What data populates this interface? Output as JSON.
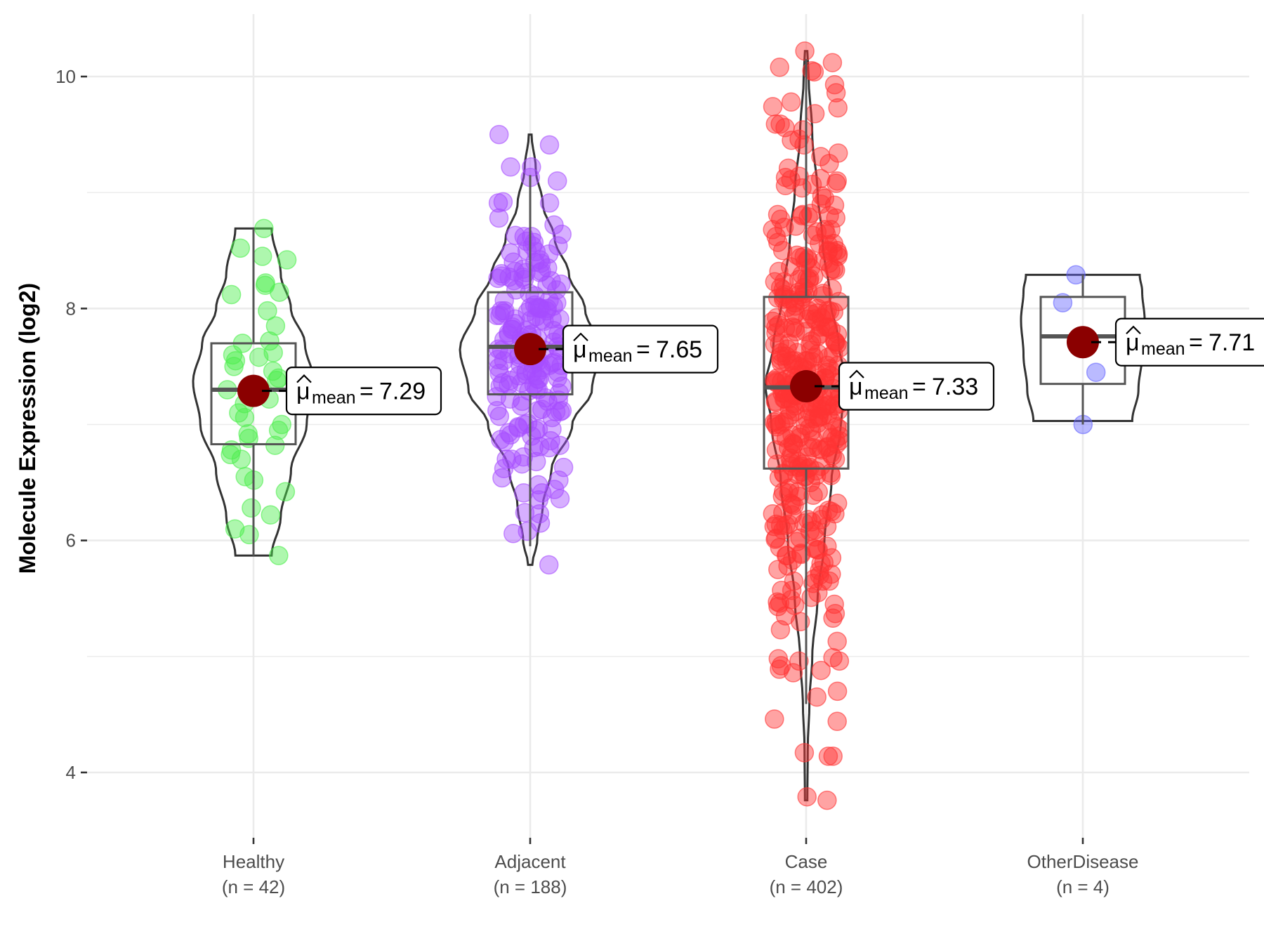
{
  "chart_data": {
    "type": "violin",
    "title": "",
    "xlabel": "",
    "ylabel": "Molecule Expression (log2)",
    "ylim": [
      3.5,
      10.5
    ],
    "y_ticks": [
      4,
      6,
      8,
      10
    ],
    "y_minor_ticks": [
      5,
      7,
      9
    ],
    "grid": true,
    "legend": "none",
    "mean_label_symbol": "μ",
    "mean_label_subscript": "mean",
    "groups": [
      {
        "name": "Healthy",
        "n_label": "(n = 42)",
        "n": 42,
        "color": "#4cee4c",
        "mean": 7.29,
        "mean_label": "7.29",
        "min": 5.87,
        "q1": 6.83,
        "median": 7.3,
        "q3": 7.7,
        "max": 8.69,
        "whisker_low": 5.87,
        "whisker_high": 8.69,
        "violin_profile": [
          [
            5.87,
            0.3
          ],
          [
            6.2,
            0.45
          ],
          [
            6.6,
            0.62
          ],
          [
            7.0,
            0.88
          ],
          [
            7.37,
            1.0
          ],
          [
            7.7,
            0.85
          ],
          [
            8.0,
            0.62
          ],
          [
            8.3,
            0.45
          ],
          [
            8.69,
            0.3
          ]
        ],
        "points": [
          8.69,
          8.52,
          8.45,
          8.42,
          8.22,
          8.2,
          8.12,
          8.14,
          7.98,
          7.85,
          7.72,
          7.7,
          7.62,
          7.6,
          7.58,
          7.55,
          7.5,
          7.46,
          7.4,
          7.38,
          7.3,
          7.28,
          7.22,
          7.18,
          7.1,
          7.06,
          7.0,
          6.95,
          6.92,
          6.88,
          6.82,
          6.78,
          6.74,
          6.7,
          6.55,
          6.52,
          6.42,
          6.28,
          6.22,
          6.1,
          6.05,
          5.87
        ]
      },
      {
        "name": "Adjacent",
        "n_label": "(n = 188)",
        "n": 188,
        "color": "#a64dff",
        "mean": 7.65,
        "mean_label": "7.65",
        "min": 5.79,
        "q1": 7.26,
        "median": 7.67,
        "q3": 8.14,
        "max": 9.5,
        "whisker_low": 5.95,
        "whisker_high": 9.15,
        "violin_profile": [
          [
            5.79,
            0.03
          ],
          [
            6.0,
            0.1
          ],
          [
            6.3,
            0.18
          ],
          [
            6.6,
            0.3
          ],
          [
            7.0,
            0.6
          ],
          [
            7.3,
            0.88
          ],
          [
            7.65,
            1.0
          ],
          [
            8.0,
            0.78
          ],
          [
            8.3,
            0.55
          ],
          [
            8.6,
            0.35
          ],
          [
            8.9,
            0.18
          ],
          [
            9.2,
            0.08
          ],
          [
            9.5,
            0.02
          ]
        ],
        "points_summary": "188 jittered points concentrated 6.5–8.5"
      },
      {
        "name": "Case",
        "n_label": "(n = 402)",
        "n": 402,
        "color": "#ff3333",
        "mean": 7.33,
        "mean_label": "7.33",
        "min": 3.76,
        "q1": 6.62,
        "median": 7.32,
        "q3": 8.1,
        "max": 10.22,
        "whisker_low": 4.59,
        "whisker_high": 10.15,
        "violin_profile": [
          [
            3.76,
            0.03
          ],
          [
            4.2,
            0.04
          ],
          [
            4.6,
            0.08
          ],
          [
            5.0,
            0.15
          ],
          [
            5.5,
            0.28
          ],
          [
            6.0,
            0.45
          ],
          [
            6.5,
            0.62
          ],
          [
            7.0,
            0.85
          ],
          [
            7.33,
            1.0
          ],
          [
            7.7,
            0.8
          ],
          [
            8.1,
            0.58
          ],
          [
            8.6,
            0.4
          ],
          [
            9.0,
            0.28
          ],
          [
            9.5,
            0.15
          ],
          [
            10.0,
            0.06
          ],
          [
            10.22,
            0.03
          ]
        ],
        "points_summary": "402 jittered points spanning 3.76–10.22"
      },
      {
        "name": "OtherDisease",
        "n_label": "(n = 4)",
        "n": 4,
        "color": "#6666ff",
        "mean": 7.71,
        "mean_label": "7.71",
        "min": 7.0,
        "q1": 7.35,
        "median": 7.76,
        "q3": 8.1,
        "max": 8.29,
        "whisker_low": 7.0,
        "whisker_high": 8.29,
        "violin_profile": [
          [
            7.03,
            0.8
          ],
          [
            7.3,
            0.9
          ],
          [
            7.6,
            0.96
          ],
          [
            7.9,
            1.0
          ],
          [
            8.15,
            0.96
          ],
          [
            8.29,
            0.92
          ]
        ],
        "points": [
          8.29,
          8.05,
          7.45,
          7.0
        ]
      }
    ]
  }
}
